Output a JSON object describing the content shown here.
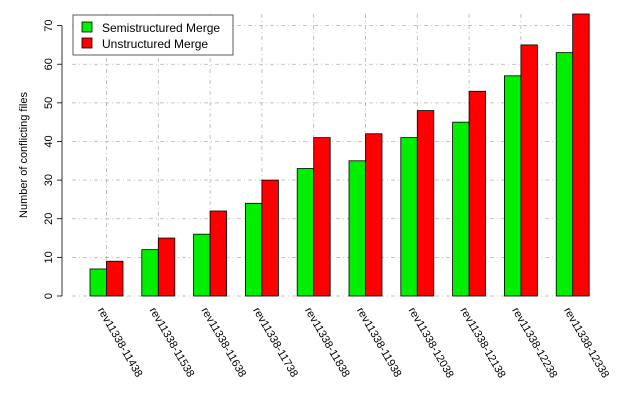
{
  "chart_data": {
    "type": "bar",
    "title": "",
    "xlabel": "",
    "ylabel": "Number of conflicting files",
    "ylim": [
      0,
      73
    ],
    "yticks": [
      0,
      10,
      20,
      30,
      40,
      50,
      60,
      70
    ],
    "grid": true,
    "legend_position": "top-left",
    "categories": [
      "rev11338-11438",
      "rev11338-11538",
      "rev11338-11638",
      "rev11338-11738",
      "rev11338-11838",
      "rev11338-11938",
      "rev11338-12038",
      "rev11338-12138",
      "rev11338-12238",
      "rev11338-12338"
    ],
    "series": [
      {
        "name": "Semistructured Merge",
        "color": "#00ee00",
        "values": [
          7,
          12,
          16,
          24,
          33,
          35,
          41,
          45,
          57,
          63
        ]
      },
      {
        "name": "Unstructured Merge",
        "color": "#ff0000",
        "values": [
          9,
          15,
          22,
          30,
          41,
          42,
          48,
          53,
          65,
          73
        ]
      }
    ]
  }
}
